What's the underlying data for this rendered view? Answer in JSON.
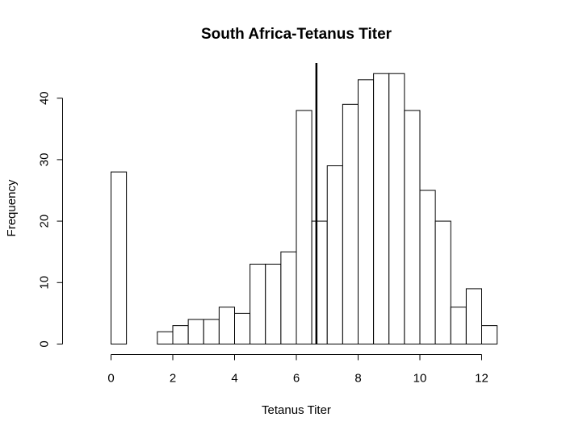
{
  "chart_data": {
    "type": "bar",
    "title": "South Africa-Tetanus Titer",
    "xlabel": "Tetanus Titer",
    "ylabel": "Frequency",
    "bin_width": 0.5,
    "bin_starts": [
      0,
      0.5,
      1,
      1.5,
      2,
      2.5,
      3,
      3.5,
      4,
      4.5,
      5,
      5.5,
      6,
      6.5,
      7,
      7.5,
      8,
      8.5,
      9,
      9.5,
      10,
      10.5,
      11,
      11.5,
      12
    ],
    "values": [
      28,
      0,
      0,
      2,
      3,
      4,
      4,
      6,
      5,
      13,
      13,
      15,
      38,
      20,
      29,
      39,
      43,
      44,
      44,
      38,
      25,
      20,
      6,
      9,
      3
    ],
    "xlim": [
      0,
      12.5
    ],
    "ylim": [
      0,
      46
    ],
    "x_ticks": [
      0,
      2,
      4,
      6,
      8,
      10,
      12
    ],
    "y_ticks": [
      0,
      10,
      20,
      30,
      40
    ],
    "vertical_line_x": 6.65,
    "grid": false,
    "legend": "none"
  }
}
